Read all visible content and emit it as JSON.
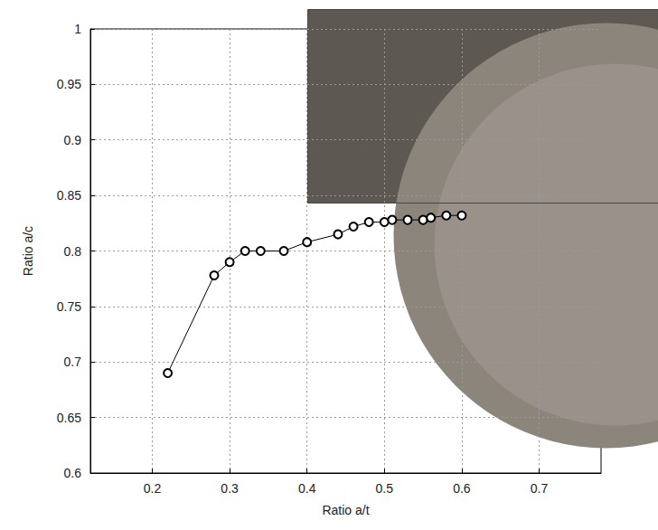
{
  "chart_data": {
    "type": "line",
    "xlabel": "Ratio a/t",
    "ylabel": "Ratio a/c",
    "x": [
      0.22,
      0.28,
      0.3,
      0.32,
      0.34,
      0.37,
      0.4,
      0.44,
      0.46,
      0.48,
      0.5,
      0.51,
      0.53,
      0.55,
      0.56,
      0.58,
      0.6
    ],
    "values": [
      0.69,
      0.778,
      0.79,
      0.8,
      0.8,
      0.8,
      0.808,
      0.815,
      0.822,
      0.826,
      0.826,
      0.828,
      0.828,
      0.828,
      0.83,
      0.832,
      0.832
    ],
    "color": "#000000",
    "marker": "circle",
    "line_style": "solid",
    "xlim": [
      0.12,
      0.78
    ],
    "xticks": [
      0.2,
      0.3,
      0.4,
      0.5,
      0.6,
      0.7
    ],
    "ylim": [
      0.6,
      1
    ],
    "yticks": [
      0.6,
      0.65,
      0.7,
      0.75,
      0.8,
      0.85,
      0.9,
      0.95,
      1
    ],
    "grid": true
  }
}
